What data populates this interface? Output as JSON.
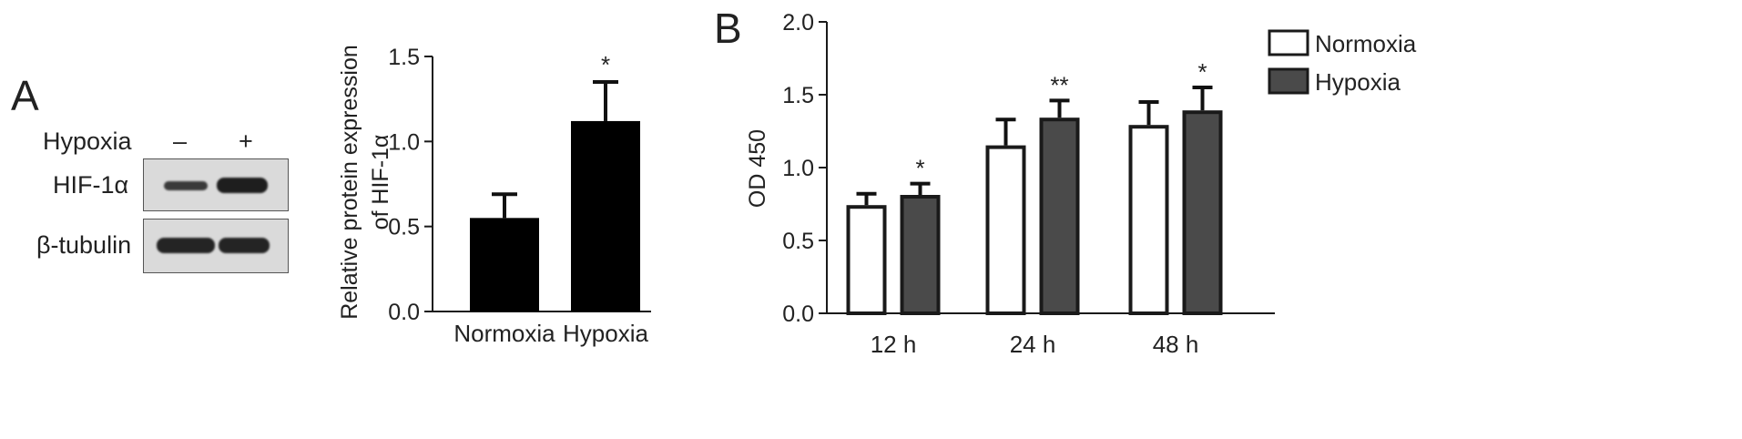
{
  "panel_a": {
    "letter": "A",
    "blot": {
      "hypoxia_label": "Hypoxia",
      "lane_minus": "–",
      "lane_plus": "+",
      "row1_label": "HIF-1α",
      "row2_label": "β-tubulin"
    }
  },
  "panel_b": {
    "letter": "B"
  },
  "colors": {
    "normoxia": "#ffffff",
    "hypoxia": "#4a4a4a",
    "black_bar": "#000000",
    "axis": "#1a1a1a"
  },
  "chart_data": [
    {
      "type": "bar",
      "title": "",
      "xlabel": "",
      "ylabel_lines": [
        "Relative protein expression",
        "of HIF-1α"
      ],
      "categories": [
        "Normoxia",
        "Hypoxia"
      ],
      "values": [
        0.55,
        1.12
      ],
      "errors": [
        0.14,
        0.23
      ],
      "significance": [
        "",
        "*"
      ],
      "ylim": [
        0.0,
        1.5
      ],
      "yticks": [
        "0.0",
        "0.5",
        "1.0",
        "1.5"
      ],
      "grid": false
    },
    {
      "type": "bar",
      "title": "",
      "xlabel": "",
      "ylabel": "OD 450",
      "categories": [
        "12 h",
        "24 h",
        "48 h"
      ],
      "series": [
        {
          "name": "Normoxia",
          "values": [
            0.73,
            1.14,
            1.28
          ],
          "errors": [
            0.09,
            0.19,
            0.17
          ],
          "significance": [
            "",
            "",
            ""
          ]
        },
        {
          "name": "Hypoxia",
          "values": [
            0.8,
            1.33,
            1.38
          ],
          "errors": [
            0.09,
            0.13,
            0.17
          ],
          "significance": [
            "*",
            "**",
            "*"
          ]
        }
      ],
      "ylim": [
        0.0,
        2.0
      ],
      "yticks": [
        "0.0",
        "0.5",
        "1.0",
        "1.5",
        "2.0"
      ],
      "legend_position": "top-right",
      "grid": false
    }
  ]
}
